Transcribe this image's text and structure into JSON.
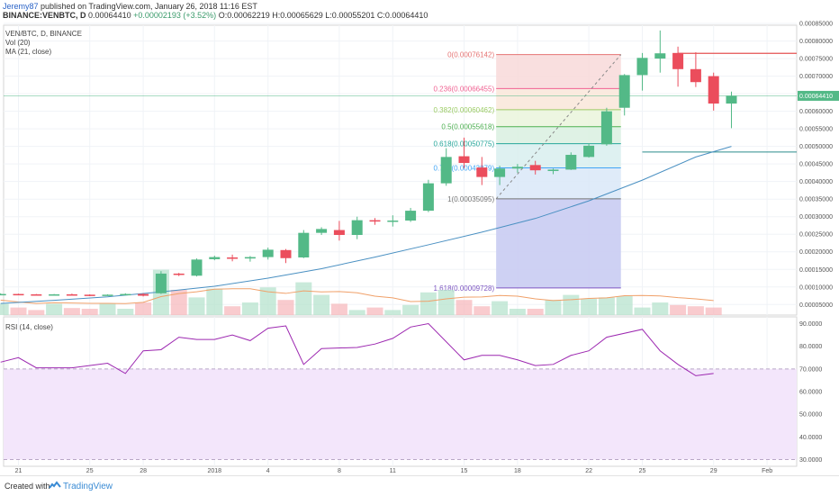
{
  "header": {
    "author": "Jeremy87",
    "published": "published on TradingView.com, January 26, 2018 11:16 EST",
    "symbol": "BINANCE:VENBTC, D",
    "price": "0.00064410",
    "change": "+0.00002193 (+3.52%)",
    "ohlc": "O:0.00062219 H:0.00065629 L:0.00055201 C:0.00064410"
  },
  "legend": {
    "symbol_line": "VEN/BTC, D, BINANCE",
    "vol_line": "Vol (20)",
    "ma_line": "MA (21, close)",
    "rsi_line": "RSI (14, close)"
  },
  "footer": {
    "created_with": "Created with",
    "brand": "TradingView"
  },
  "last_price_label": "0.00064410",
  "colors": {
    "up": "#53b987",
    "down": "#eb4d5c",
    "ma": "#4a90c2",
    "vol_ma": "#f0a069",
    "rsi": "#9c27b0",
    "rsi_band": "#f3e6fb",
    "last_price": "#53b987"
  },
  "chart_data": {
    "type": "candlestick",
    "price_axis": {
      "ylim": [
        2e-05,
        0.000845
      ],
      "ticks": [
        "0.00085000",
        "0.00080000",
        "0.00075000",
        "0.00070000",
        "0.00065000",
        "0.00060000",
        "0.00055000",
        "0.00050000",
        "0.00045000",
        "0.00040000",
        "0.00035000",
        "0.00030000",
        "0.00025000",
        "0.00020000",
        "0.00015000",
        "0.00010000",
        "0.00005000"
      ]
    },
    "x_axis": {
      "labels": [
        {
          "text": "21",
          "day": 0
        },
        {
          "text": "25",
          "day": 4
        },
        {
          "text": "28",
          "day": 7
        },
        {
          "text": "2018",
          "day": 11
        },
        {
          "text": "4",
          "day": 14
        },
        {
          "text": "8",
          "day": 18
        },
        {
          "text": "11",
          "day": 21
        },
        {
          "text": "15",
          "day": 25
        },
        {
          "text": "18",
          "day": 28
        },
        {
          "text": "22",
          "day": 32
        },
        {
          "text": "25",
          "day": 35
        },
        {
          "text": "29",
          "day": 39
        },
        {
          "text": "Feb",
          "day": 42
        }
      ],
      "first_day": "2017-12-21"
    },
    "candles": [
      {
        "day": -1,
        "o": 8e-05,
        "h": 8.2e-05,
        "l": 7.8e-05,
        "c": 8e-05
      },
      {
        "day": 0,
        "o": 8e-05,
        "h": 8.1e-05,
        "l": 7.8e-05,
        "c": 7.9e-05
      },
      {
        "day": 1,
        "o": 7.9e-05,
        "h": 8e-05,
        "l": 7.7e-05,
        "c": 7.8e-05
      },
      {
        "day": 2,
        "o": 7.8e-05,
        "h": 8e-05,
        "l": 7.6e-05,
        "c": 7.9e-05
      },
      {
        "day": 3,
        "o": 7.9e-05,
        "h": 8.1e-05,
        "l": 7.7e-05,
        "c": 7.8e-05
      },
      {
        "day": 4,
        "o": 7.8e-05,
        "h": 7.9e-05,
        "l": 7.4e-05,
        "c": 7.7e-05
      },
      {
        "day": 5,
        "o": 7.7e-05,
        "h": 7.9e-05,
        "l": 7.5e-05,
        "c": 7.8e-05
      },
      {
        "day": 6,
        "o": 7.8e-05,
        "h": 8.2e-05,
        "l": 7.6e-05,
        "c": 8e-05
      },
      {
        "day": 7,
        "o": 8e-05,
        "h": 8.2e-05,
        "l": 7.3e-05,
        "c": 7.5e-05
      },
      {
        "day": 8,
        "o": 8.2e-05,
        "h": 0.000145,
        "l": 8e-05,
        "c": 0.000138
      },
      {
        "day": 9,
        "o": 0.000138,
        "h": 0.00014,
        "l": 0.000131,
        "c": 0.000136
      },
      {
        "day": 10,
        "o": 0.000132,
        "h": 0.000181,
        "l": 0.00013,
        "c": 0.000178
      },
      {
        "day": 11,
        "o": 0.000179,
        "h": 0.000189,
        "l": 0.000176,
        "c": 0.000185
      },
      {
        "day": 12,
        "o": 0.000184,
        "h": 0.000192,
        "l": 0.000173,
        "c": 0.000181
      },
      {
        "day": 13,
        "o": 0.000181,
        "h": 0.000188,
        "l": 0.000172,
        "c": 0.000185
      },
      {
        "day": 14,
        "o": 0.000185,
        "h": 0.000212,
        "l": 0.000178,
        "c": 0.000206
      },
      {
        "day": 15,
        "o": 0.000205,
        "h": 0.000208,
        "l": 0.000168,
        "c": 0.000182
      },
      {
        "day": 16,
        "o": 0.000184,
        "h": 0.000262,
        "l": 0.000182,
        "c": 0.000254
      },
      {
        "day": 17,
        "o": 0.000254,
        "h": 0.00027,
        "l": 0.000248,
        "c": 0.000265
      },
      {
        "day": 18,
        "o": 0.000262,
        "h": 0.000288,
        "l": 0.000232,
        "c": 0.000248
      },
      {
        "day": 19,
        "o": 0.000248,
        "h": 0.0003,
        "l": 0.000236,
        "c": 0.00029
      },
      {
        "day": 20,
        "o": 0.00029,
        "h": 0.000296,
        "l": 0.000277,
        "c": 0.000287
      },
      {
        "day": 21,
        "o": 0.000286,
        "h": 0.000304,
        "l": 0.000272,
        "c": 0.000289
      },
      {
        "day": 22,
        "o": 0.000289,
        "h": 0.000325,
        "l": 0.000285,
        "c": 0.000317
      },
      {
        "day": 23,
        "o": 0.000317,
        "h": 0.000405,
        "l": 0.000313,
        "c": 0.000395
      },
      {
        "day": 24,
        "o": 0.000395,
        "h": 0.000495,
        "l": 0.000388,
        "c": 0.00047
      },
      {
        "day": 25,
        "o": 0.000472,
        "h": 0.000525,
        "l": 0.000438,
        "c": 0.000453
      },
      {
        "day": 26,
        "o": 0.00044,
        "h": 0.00047,
        "l": 0.00039,
        "c": 0.000413
      },
      {
        "day": 27,
        "o": 0.000413,
        "h": 0.000445,
        "l": 0.00039,
        "c": 0.000437
      },
      {
        "day": 28,
        "o": 0.000437,
        "h": 0.00045,
        "l": 0.000425,
        "c": 0.000442
      },
      {
        "day": 29,
        "o": 0.000447,
        "h": 0.000459,
        "l": 0.00042,
        "c": 0.000432
      },
      {
        "day": 30,
        "o": 0.00043,
        "h": 0.000437,
        "l": 0.000421,
        "c": 0.000434
      },
      {
        "day": 31,
        "o": 0.000434,
        "h": 0.000483,
        "l": 0.000433,
        "c": 0.000476
      },
      {
        "day": 32,
        "o": 0.00047,
        "h": 0.000508,
        "l": 0.000468,
        "c": 0.000502
      },
      {
        "day": 33,
        "o": 0.000506,
        "h": 0.00061,
        "l": 0.000502,
        "c": 0.0006
      },
      {
        "day": 34,
        "o": 0.00061,
        "h": 0.000706,
        "l": 0.000588,
        "c": 0.000703
      },
      {
        "day": 35,
        "o": 0.000703,
        "h": 0.000766,
        "l": 0.000659,
        "c": 0.000752
      },
      {
        "day": 36,
        "o": 0.00075,
        "h": 0.00083,
        "l": 0.00071,
        "c": 0.000765
      },
      {
        "day": 37,
        "o": 0.000766,
        "h": 0.000784,
        "l": 0.00067,
        "c": 0.00072
      },
      {
        "day": 38,
        "o": 0.00072,
        "h": 0.000768,
        "l": 0.000669,
        "c": 0.000683
      },
      {
        "day": 39,
        "o": 0.0007,
        "h": 0.00071,
        "l": 0.000602,
        "c": 0.000622
      },
      {
        "day": 40,
        "o": 0.000622,
        "h": 0.000656,
        "l": 0.000552,
        "c": 0.000644
      }
    ],
    "volume": [
      0.45,
      0.3,
      0.2,
      0.45,
      0.28,
      0.25,
      0.45,
      0.25,
      0.5,
      1.8,
      1,
      0.7,
      1.05,
      0.35,
      0.5,
      1.1,
      0.6,
      1.3,
      0.8,
      0.45,
      0.2,
      0.3,
      0.2,
      0.4,
      0.9,
      1,
      0.6,
      0.35,
      0.55,
      0.25,
      0.25,
      0.6,
      0.8,
      0.65,
      0.7,
      0.75,
      0.3,
      0.5,
      0.4,
      0.35,
      0.3
    ],
    "ma_21": [
      {
        "day": -1,
        "v": 5.3e-05
      },
      {
        "day": 2,
        "v": 6.2e-05
      },
      {
        "day": 5,
        "v": 7.2e-05
      },
      {
        "day": 8,
        "v": 8.6e-05
      },
      {
        "day": 11,
        "v": 0.000102
      },
      {
        "day": 14,
        "v": 0.000125
      },
      {
        "day": 17,
        "v": 0.000152
      },
      {
        "day": 20,
        "v": 0.000185
      },
      {
        "day": 23,
        "v": 0.00022
      },
      {
        "day": 26,
        "v": 0.000256
      },
      {
        "day": 29,
        "v": 0.000295
      },
      {
        "day": 32,
        "v": 0.000345
      },
      {
        "day": 35,
        "v": 0.000404
      },
      {
        "day": 38,
        "v": 0.00047
      },
      {
        "day": 40,
        "v": 0.0005
      }
    ],
    "fib": {
      "levels": [
        {
          "label": "0(0.00076142)",
          "v": 0.00076142,
          "color": "#e57373"
        },
        {
          "label": "0.236(0.00066455)",
          "v": 0.00066455,
          "color": "#f06292"
        },
        {
          "label": "0.382(0.00060462)",
          "v": 0.00060462,
          "color": "#9ccc65"
        },
        {
          "label": "0.5(0.00055618)",
          "v": 0.00055618,
          "color": "#4caf50"
        },
        {
          "label": "0.618(0.00050775)",
          "v": 0.00050775,
          "color": "#26a69a"
        },
        {
          "label": "0.786(0.00043879)",
          "v": 0.00043879,
          "color": "#42a5f5"
        },
        {
          "label": "1(0.00035095)",
          "v": 0.00035095,
          "color": "#757575"
        },
        {
          "label": "1.618(0.00009728)",
          "v": 9.728e-05,
          "color": "#7e57c2"
        }
      ]
    },
    "hlines": [
      0.000765,
      0.000484
    ],
    "rsi": {
      "ylim": [
        27,
        93
      ],
      "ticks": [
        "90.0000",
        "80.0000",
        "70.0000",
        "60.0000",
        "50.0000",
        "40.0000",
        "30.0000"
      ],
      "band": [
        30,
        70
      ],
      "points": [
        {
          "day": -1,
          "v": 73
        },
        {
          "day": 0,
          "v": 75
        },
        {
          "day": 1,
          "v": 70.5
        },
        {
          "day": 3,
          "v": 70.5
        },
        {
          "day": 5,
          "v": 72.5
        },
        {
          "day": 6,
          "v": 68
        },
        {
          "day": 7,
          "v": 78
        },
        {
          "day": 8,
          "v": 78.5
        },
        {
          "day": 9,
          "v": 84
        },
        {
          "day": 10,
          "v": 83
        },
        {
          "day": 11,
          "v": 83
        },
        {
          "day": 12,
          "v": 85
        },
        {
          "day": 13,
          "v": 82.5
        },
        {
          "day": 14,
          "v": 88
        },
        {
          "day": 15,
          "v": 89
        },
        {
          "day": 16,
          "v": 72
        },
        {
          "day": 17,
          "v": 79
        },
        {
          "day": 19,
          "v": 79.5
        },
        {
          "day": 20,
          "v": 81
        },
        {
          "day": 21,
          "v": 83.5
        },
        {
          "day": 22,
          "v": 88.5
        },
        {
          "day": 23,
          "v": 90
        },
        {
          "day": 25,
          "v": 74
        },
        {
          "day": 26,
          "v": 76
        },
        {
          "day": 27,
          "v": 76
        },
        {
          "day": 28,
          "v": 74
        },
        {
          "day": 29,
          "v": 71.5
        },
        {
          "day": 30,
          "v": 72
        },
        {
          "day": 31,
          "v": 76
        },
        {
          "day": 32,
          "v": 78
        },
        {
          "day": 33,
          "v": 84
        },
        {
          "day": 35,
          "v": 87.5
        },
        {
          "day": 36,
          "v": 78
        },
        {
          "day": 37,
          "v": 72
        },
        {
          "day": 38,
          "v": 67
        },
        {
          "day": 39,
          "v": 68
        }
      ]
    }
  }
}
